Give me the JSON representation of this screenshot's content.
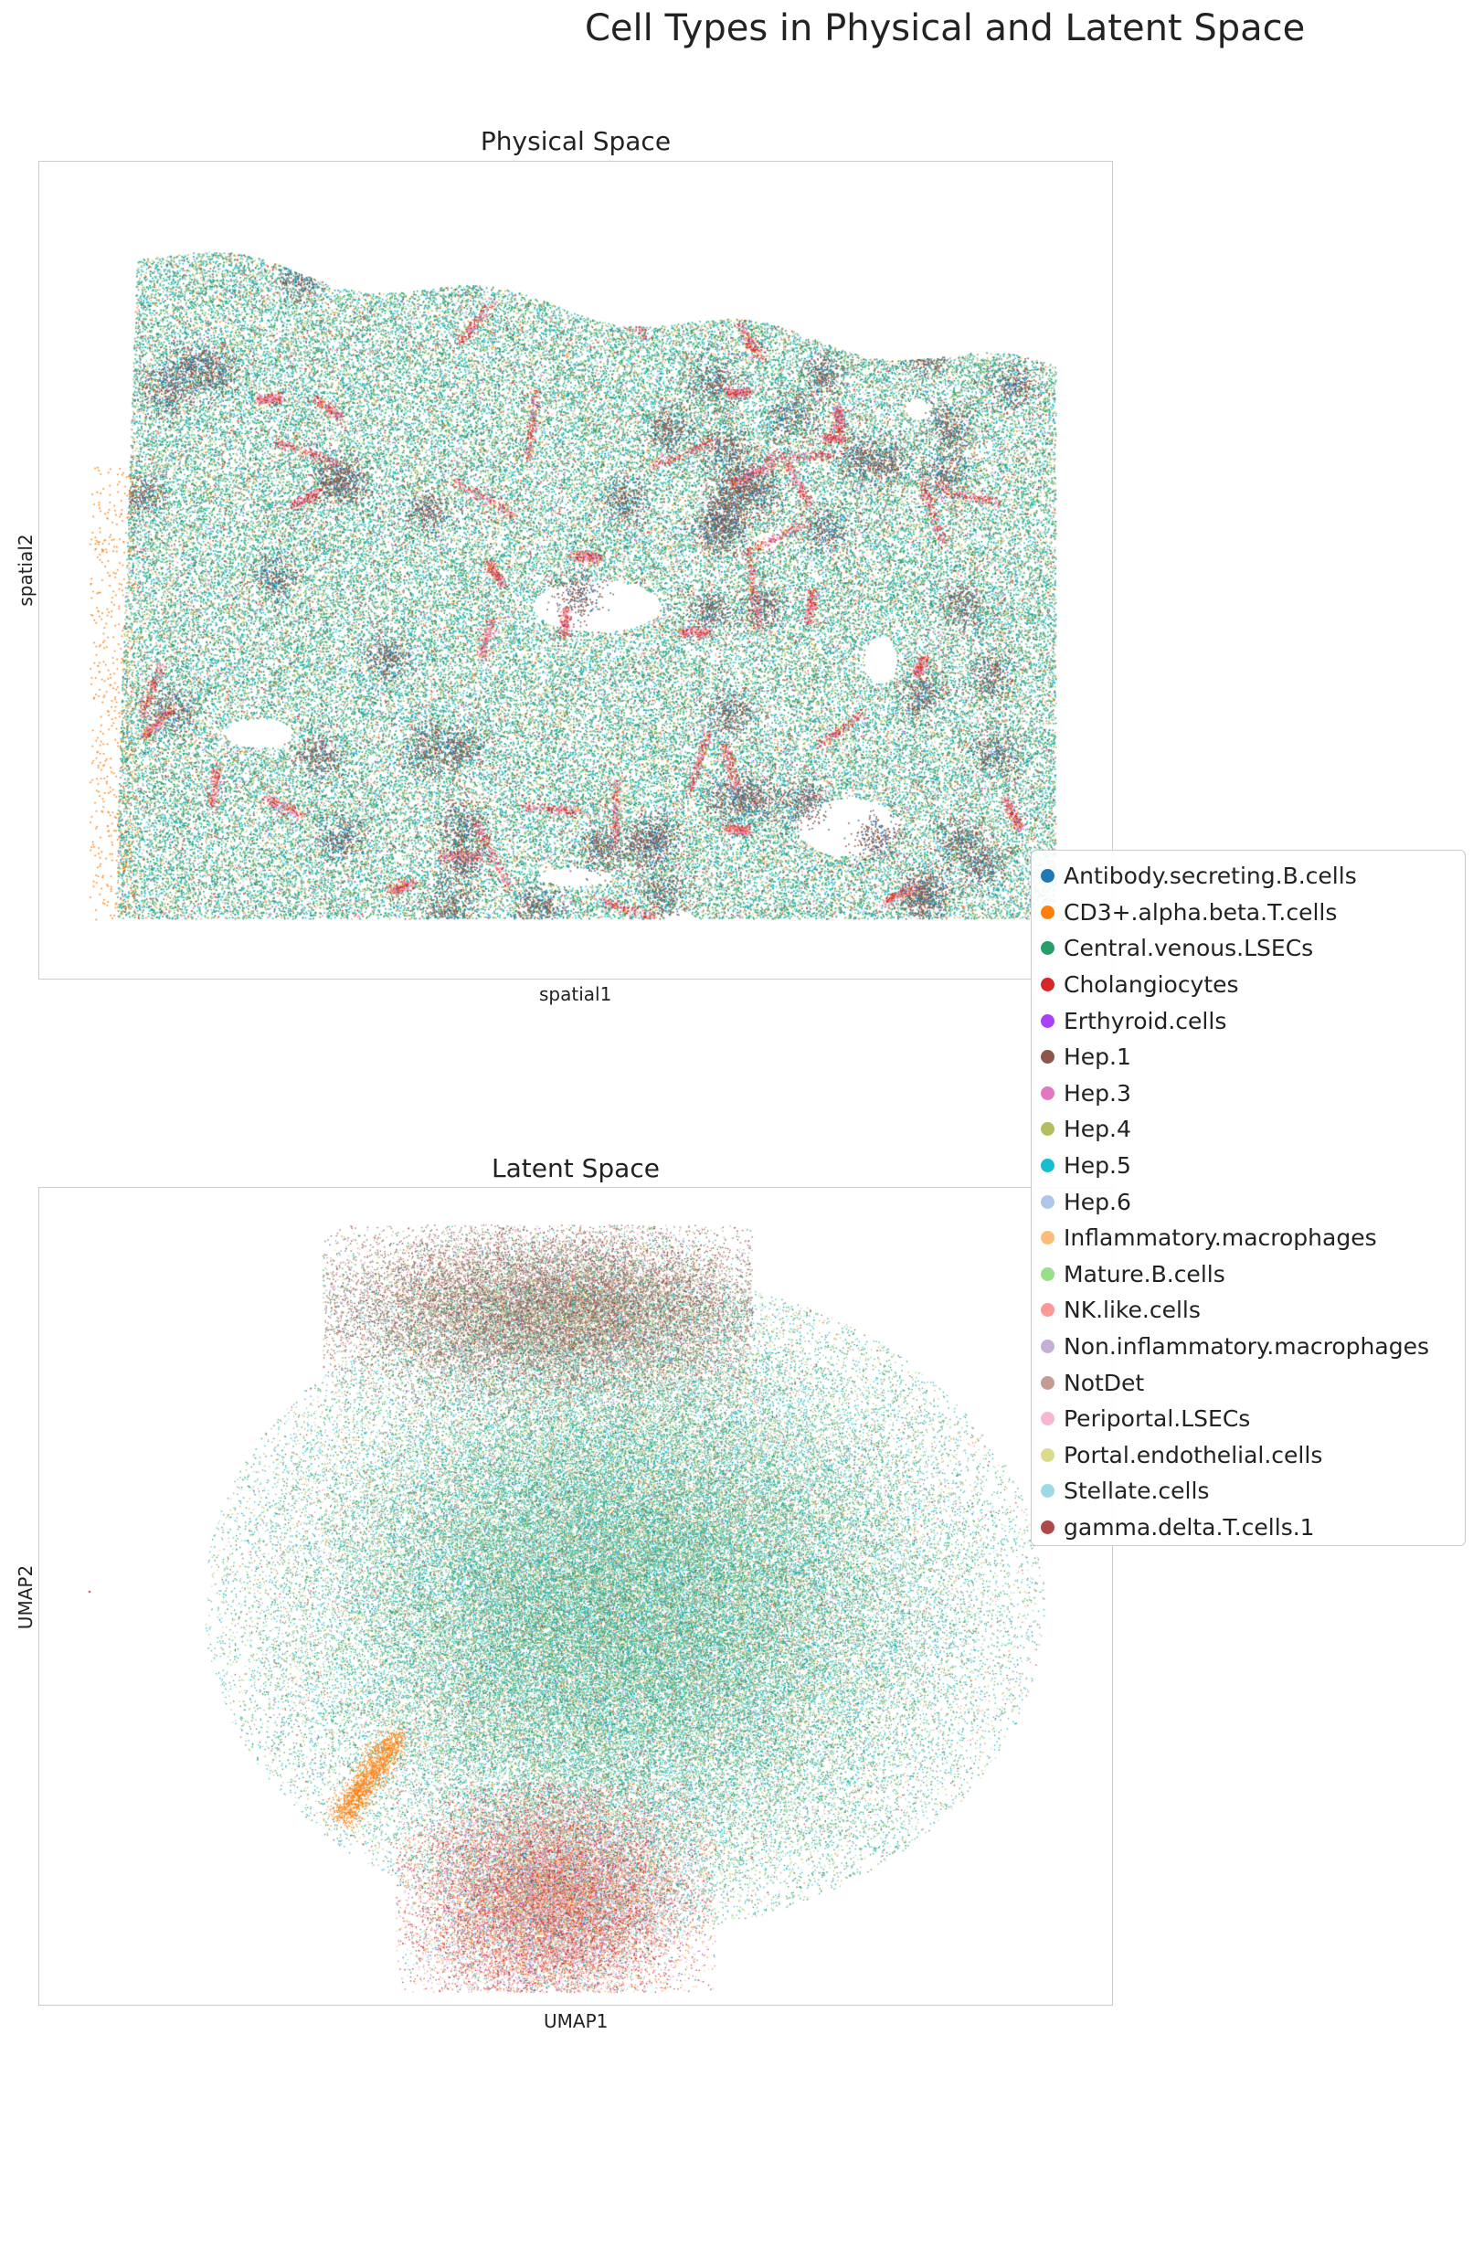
{
  "title": "Cell Types in Physical and Latent Space",
  "chart_data": [
    {
      "type": "scatter",
      "title": "Physical Space",
      "xlabel": "spatial1",
      "ylabel": "spatial2",
      "ticks_shown": false,
      "grid": false
    },
    {
      "type": "scatter",
      "title": "Latent Space",
      "xlabel": "UMAP1",
      "ylabel": "UMAP2",
      "ticks_shown": false,
      "grid": false
    }
  ],
  "legend": {
    "placement": "center-right, overlapping both panels",
    "items": [
      {
        "label": "Antibody.secreting.B.cells",
        "color": "#1f77b4"
      },
      {
        "label": "CD3+.alpha.beta.T.cells",
        "color": "#ff7f0e"
      },
      {
        "label": "Central.venous.LSECs",
        "color": "#279e68"
      },
      {
        "label": "Cholangiocytes",
        "color": "#d62728"
      },
      {
        "label": "Erthyroid.cells",
        "color": "#aa40fc"
      },
      {
        "label": "Hep.1",
        "color": "#8c564b"
      },
      {
        "label": "Hep.3",
        "color": "#e377c2"
      },
      {
        "label": "Hep.4",
        "color": "#b5bd61"
      },
      {
        "label": "Hep.5",
        "color": "#17becf"
      },
      {
        "label": "Hep.6",
        "color": "#aec7e8"
      },
      {
        "label": "Inflammatory.macrophages",
        "color": "#ffbb78"
      },
      {
        "label": "Mature.B.cells",
        "color": "#98df8a"
      },
      {
        "label": "NK.like.cells",
        "color": "#ff9896"
      },
      {
        "label": "Non.inflammatory.macrophages",
        "color": "#c5b0d5"
      },
      {
        "label": "NotDet",
        "color": "#c49c94"
      },
      {
        "label": "Periportal.LSECs",
        "color": "#f7b6d2"
      },
      {
        "label": "Portal.endothelial.cells",
        "color": "#dbdb8d"
      },
      {
        "label": "Stellate.cells",
        "color": "#9edae5"
      },
      {
        "label": "gamma.delta.T.cells.1",
        "color": "#ad494a"
      }
    ]
  }
}
